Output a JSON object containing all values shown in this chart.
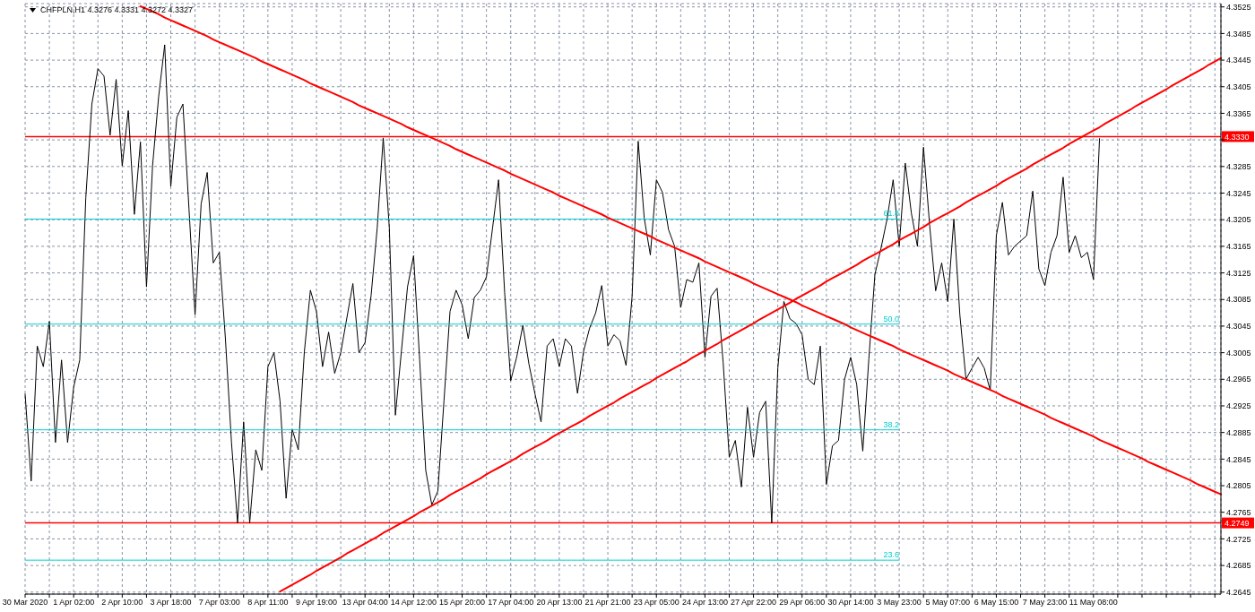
{
  "chart_data": {
    "type": "line",
    "title": "CHFPLN,H1 4.3276 4.3331 4.3272 4.3327",
    "categories": [
      "30 Mar 2020",
      null,
      null,
      null,
      null,
      null,
      null,
      null,
      "1 Apr 02:00",
      null,
      null,
      null,
      null,
      null,
      null,
      null,
      "2 Apr 10:00",
      null,
      null,
      null,
      null,
      null,
      null,
      null,
      "3 Apr 18:00",
      null,
      null,
      null,
      null,
      null,
      null,
      null,
      "7 Apr 03:00",
      null,
      null,
      null,
      null,
      null,
      null,
      null,
      "8 Apr 11:00",
      null,
      null,
      null,
      null,
      null,
      null,
      null,
      "9 Apr 19:00",
      null,
      null,
      null,
      null,
      null,
      null,
      null,
      "13 Apr 04:00",
      null,
      null,
      null,
      null,
      null,
      null,
      null,
      "14 Apr 12:00",
      null,
      null,
      null,
      null,
      null,
      null,
      null,
      "15 Apr 20:00",
      null,
      null,
      null,
      null,
      null,
      null,
      null,
      "17 Apr 04:00",
      null,
      null,
      null,
      null,
      null,
      null,
      null,
      "20 Apr 13:00",
      null,
      null,
      null,
      null,
      null,
      null,
      null,
      "21 Apr 21:00",
      null,
      null,
      null,
      null,
      null,
      null,
      null,
      "23 Apr 05:00",
      null,
      null,
      null,
      null,
      null,
      null,
      null,
      "24 Apr 13:00",
      null,
      null,
      null,
      null,
      null,
      null,
      null,
      "27 Apr 22:00",
      null,
      null,
      null,
      null,
      null,
      null,
      null,
      "29 Apr 06:00",
      null,
      null,
      null,
      null,
      null,
      null,
      null,
      "30 Apr 14:00",
      null,
      null,
      null,
      null,
      null,
      null,
      null,
      "3 May 23:00",
      null,
      null,
      null,
      null,
      null,
      null,
      null,
      "5 May 07:00",
      null,
      null,
      null,
      null,
      null,
      null,
      null,
      "6 May 15:00",
      null,
      null,
      null,
      null,
      null,
      null,
      null,
      "7 May 23:00",
      null,
      null,
      null,
      null,
      null,
      null,
      null,
      "11 May 08:00",
      null,
      null,
      null,
      null,
      null,
      null,
      null,
      null,
      null,
      null,
      null,
      null,
      null,
      null,
      null,
      null,
      null,
      null,
      null,
      null,
      null
    ],
    "ylim": [
      4.2642,
      4.353
    ],
    "yticks": [
      4.2645,
      4.2685,
      4.2725,
      4.2765,
      4.2805,
      4.2845,
      4.2885,
      4.2925,
      4.2965,
      4.3005,
      4.3045,
      4.3085,
      4.3125,
      4.3165,
      4.3205,
      4.3245,
      4.3285,
      {
        "value": 4.3325,
        "label": null
      },
      4.3365,
      4.3405,
      4.3445,
      4.3485,
      4.3525
    ],
    "grid": true,
    "marker": "none",
    "ref_lines": [
      {
        "axis": "y",
        "value": 4.333,
        "label": "4.3330",
        "color": "#ff0000"
      },
      {
        "axis": "y",
        "value": 4.2749,
        "label": "4.2749",
        "color": "#ff0000"
      }
    ],
    "series": [
      {
        "color": "#000000",
        "values": [
          4.2943,
          4.2812,
          4.3015,
          4.2984,
          4.3052,
          4.287,
          4.2994,
          4.287,
          4.2953,
          4.2994,
          4.3238,
          4.3379,
          4.3432,
          4.3421,
          4.3332,
          4.3416,
          4.3286,
          4.3369,
          4.3213,
          4.3322,
          4.3104,
          4.3286,
          4.339,
          4.3468,
          4.3255,
          4.3359,
          4.3379,
          4.3221,
          4.3062,
          4.3229,
          4.3276,
          4.314,
          4.3156,
          4.3026,
          4.287,
          4.2749,
          4.2901,
          4.2749,
          4.2859,
          4.2828,
          4.2984,
          4.3005,
          4.2932,
          4.2786,
          4.289,
          4.2859,
          4.3006,
          4.3099,
          4.3067,
          4.2984,
          4.3036,
          4.2974,
          4.3005,
          4.3057,
          4.3109,
          4.3005,
          4.302,
          4.3091,
          4.3192,
          4.3328,
          4.3193,
          4.2911,
          4.3008,
          4.3104,
          4.3151,
          4.2994,
          4.2828,
          4.2776,
          4.2797,
          4.2932,
          4.3067,
          4.3099,
          4.3077,
          4.3026,
          4.3088,
          4.3099,
          4.3119,
          4.3192,
          4.3265,
          4.3095,
          4.2963,
          4.2999,
          4.3046,
          4.2988,
          4.2943,
          4.2901,
          4.3015,
          4.3026,
          4.2984,
          4.3026,
          4.3015,
          4.2944,
          4.3007,
          4.3042,
          4.3065,
          4.3106,
          4.3015,
          4.3032,
          4.3023,
          4.2986,
          4.309,
          4.3323,
          4.3207,
          4.3152,
          4.3265,
          4.3246,
          4.319,
          4.3165,
          4.3073,
          4.3115,
          4.3111,
          4.314,
          4.2998,
          4.309,
          4.3102,
          4.299,
          4.2848,
          4.2873,
          4.2803,
          4.2923,
          4.2848,
          4.2915,
          4.2932,
          4.2749,
          4.2982,
          4.3082,
          4.3056,
          4.3049,
          4.3032,
          4.2965,
          4.2957,
          4.3015,
          4.2807,
          4.2865,
          4.2873,
          4.2965,
          4.2998,
          4.2957,
          4.2857,
          4.2996,
          4.3123,
          4.3162,
          4.3206,
          4.3265,
          4.3165,
          4.329,
          4.3215,
          4.3165,
          4.3314,
          4.3198,
          4.3098,
          4.314,
          4.3082,
          4.3206,
          4.3061,
          4.2965,
          4.2982,
          4.2998,
          4.2982,
          4.2948,
          4.3181,
          4.3231,
          4.3152,
          4.3165,
          4.3173,
          4.3181,
          4.3248,
          4.3131,
          4.3106,
          4.3156,
          4.3181,
          4.3269,
          4.3156,
          4.3181,
          4.3148,
          4.3156,
          4.3115,
          4.3327,
          null,
          null,
          null,
          null,
          null,
          null,
          null,
          null,
          null,
          null,
          null,
          null,
          null,
          null,
          null,
          null,
          null,
          null,
          null,
          null
        ]
      },
      {
        "type": "line",
        "name": "61.8",
        "color": "#00ced1",
        "values": [
          4.3206,
          4.3206,
          4.3206,
          4.3206,
          4.3206,
          4.3206,
          4.3206,
          4.3206,
          4.3206,
          4.3206,
          4.3206,
          4.3206,
          4.3206,
          4.3206,
          4.3206,
          4.3206,
          4.3206,
          4.3206,
          4.3206,
          4.3206,
          4.3206,
          4.3206,
          4.3206,
          4.3206,
          4.3206,
          4.3206,
          4.3206,
          4.3206,
          4.3206,
          4.3206,
          4.3206,
          4.3206,
          4.3206,
          4.3206,
          4.3206,
          4.3206,
          4.3206,
          4.3206,
          4.3206,
          4.3206,
          4.3206,
          4.3206,
          4.3206,
          4.3206,
          4.3206,
          4.3206,
          4.3206,
          4.3206,
          4.3206,
          4.3206,
          4.3206,
          4.3206,
          4.3206,
          4.3206,
          4.3206,
          4.3206,
          4.3206,
          4.3206,
          4.3206,
          4.3206,
          4.3206,
          4.3206,
          4.3206,
          4.3206,
          4.3206,
          4.3206,
          4.3206,
          4.3206,
          4.3206,
          4.3206,
          4.3206,
          4.3206,
          4.3206,
          4.3206,
          4.3206,
          4.3206,
          4.3206,
          4.3206,
          4.3206,
          4.3206,
          4.3206,
          4.3206,
          4.3206,
          4.3206,
          4.3206,
          4.3206,
          4.3206,
          4.3206,
          4.3206,
          4.3206,
          4.3206,
          4.3206,
          4.3206,
          4.3206,
          4.3206,
          4.3206,
          4.3206,
          4.3206,
          4.3206,
          4.3206,
          4.3206,
          4.3206,
          4.3206,
          4.3206,
          4.3206,
          4.3206,
          4.3206,
          4.3206,
          4.3206,
          4.3206,
          4.3206,
          4.3206,
          4.3206,
          4.3206,
          4.3206,
          4.3206,
          4.3206,
          4.3206,
          4.3206,
          4.3206,
          4.3206,
          4.3206,
          4.3206,
          4.3206,
          4.3206,
          4.3206,
          4.3206,
          4.3206,
          4.3206,
          4.3206,
          4.3206,
          4.3206,
          4.3206,
          4.3206,
          4.3206,
          4.3206,
          4.3206,
          4.3206,
          4.3206,
          4.3206,
          4.3206,
          4.3206,
          4.3206,
          4.3206,
          4.3206,
          null,
          null,
          null,
          null,
          null,
          null,
          null,
          null,
          null,
          null,
          null,
          null,
          null,
          null,
          null,
          null,
          null,
          null,
          null,
          null,
          null,
          null,
          null,
          null,
          null,
          null,
          null,
          null,
          null,
          null,
          null,
          null,
          null,
          null,
          null,
          null,
          null,
          null,
          null,
          null,
          null,
          null,
          null,
          null,
          null,
          null,
          null,
          null,
          null,
          null,
          null,
          null,
          null
        ]
      },
      {
        "type": "line",
        "name": "50.0",
        "color": "#00ced1",
        "values": [
          4.3048,
          4.3048,
          4.3048,
          4.3048,
          4.3048,
          4.3048,
          4.3048,
          4.3048,
          4.3048,
          4.3048,
          4.3048,
          4.3048,
          4.3048,
          4.3048,
          4.3048,
          4.3048,
          4.3048,
          4.3048,
          4.3048,
          4.3048,
          4.3048,
          4.3048,
          4.3048,
          4.3048,
          4.3048,
          4.3048,
          4.3048,
          4.3048,
          4.3048,
          4.3048,
          4.3048,
          4.3048,
          4.3048,
          4.3048,
          4.3048,
          4.3048,
          4.3048,
          4.3048,
          4.3048,
          4.3048,
          4.3048,
          4.3048,
          4.3048,
          4.3048,
          4.3048,
          4.3048,
          4.3048,
          4.3048,
          4.3048,
          4.3048,
          4.3048,
          4.3048,
          4.3048,
          4.3048,
          4.3048,
          4.3048,
          4.3048,
          4.3048,
          4.3048,
          4.3048,
          4.3048,
          4.3048,
          4.3048,
          4.3048,
          4.3048,
          4.3048,
          4.3048,
          4.3048,
          4.3048,
          4.3048,
          4.3048,
          4.3048,
          4.3048,
          4.3048,
          4.3048,
          4.3048,
          4.3048,
          4.3048,
          4.3048,
          4.3048,
          4.3048,
          4.3048,
          4.3048,
          4.3048,
          4.3048,
          4.3048,
          4.3048,
          4.3048,
          4.3048,
          4.3048,
          4.3048,
          4.3048,
          4.3048,
          4.3048,
          4.3048,
          4.3048,
          4.3048,
          4.3048,
          4.3048,
          4.3048,
          4.3048,
          4.3048,
          4.3048,
          4.3048,
          4.3048,
          4.3048,
          4.3048,
          4.3048,
          4.3048,
          4.3048,
          4.3048,
          4.3048,
          4.3048,
          4.3048,
          4.3048,
          4.3048,
          4.3048,
          4.3048,
          4.3048,
          4.3048,
          4.3048,
          4.3048,
          4.3048,
          4.3048,
          4.3048,
          4.3048,
          4.3048,
          4.3048,
          4.3048,
          4.3048,
          4.3048,
          4.3048,
          4.3048,
          4.3048,
          4.3048,
          4.3048,
          4.3048,
          4.3048,
          4.3048,
          4.3048,
          4.3048,
          4.3048,
          4.3048,
          4.3048,
          4.3048,
          null,
          null,
          null,
          null,
          null,
          null,
          null,
          null,
          null,
          null,
          null,
          null,
          null,
          null,
          null,
          null,
          null,
          null,
          null,
          null,
          null,
          null,
          null,
          null,
          null,
          null,
          null,
          null,
          null,
          null,
          null,
          null,
          null,
          null,
          null,
          null,
          null,
          null,
          null,
          null,
          null,
          null,
          null,
          null,
          null,
          null,
          null,
          null,
          null,
          null,
          null,
          null,
          null
        ]
      },
      {
        "type": "line",
        "name": "38.2",
        "color": "#00ced1",
        "values": [
          4.2889,
          4.2889,
          4.2889,
          4.2889,
          4.2889,
          4.2889,
          4.2889,
          4.2889,
          4.2889,
          4.2889,
          4.2889,
          4.2889,
          4.2889,
          4.2889,
          4.2889,
          4.2889,
          4.2889,
          4.2889,
          4.2889,
          4.2889,
          4.2889,
          4.2889,
          4.2889,
          4.2889,
          4.2889,
          4.2889,
          4.2889,
          4.2889,
          4.2889,
          4.2889,
          4.2889,
          4.2889,
          4.2889,
          4.2889,
          4.2889,
          4.2889,
          4.2889,
          4.2889,
          4.2889,
          4.2889,
          4.2889,
          4.2889,
          4.2889,
          4.2889,
          4.2889,
          4.2889,
          4.2889,
          4.2889,
          4.2889,
          4.2889,
          4.2889,
          4.2889,
          4.2889,
          4.2889,
          4.2889,
          4.2889,
          4.2889,
          4.2889,
          4.2889,
          4.2889,
          4.2889,
          4.2889,
          4.2889,
          4.2889,
          4.2889,
          4.2889,
          4.2889,
          4.2889,
          4.2889,
          4.2889,
          4.2889,
          4.2889,
          4.2889,
          4.2889,
          4.2889,
          4.2889,
          4.2889,
          4.2889,
          4.2889,
          4.2889,
          4.2889,
          4.2889,
          4.2889,
          4.2889,
          4.2889,
          4.2889,
          4.2889,
          4.2889,
          4.2889,
          4.2889,
          4.2889,
          4.2889,
          4.2889,
          4.2889,
          4.2889,
          4.2889,
          4.2889,
          4.2889,
          4.2889,
          4.2889,
          4.2889,
          4.2889,
          4.2889,
          4.2889,
          4.2889,
          4.2889,
          4.2889,
          4.2889,
          4.2889,
          4.2889,
          4.2889,
          4.2889,
          4.2889,
          4.2889,
          4.2889,
          4.2889,
          4.2889,
          4.2889,
          4.2889,
          4.2889,
          4.2889,
          4.2889,
          4.2889,
          4.2889,
          4.2889,
          4.2889,
          4.2889,
          4.2889,
          4.2889,
          4.2889,
          4.2889,
          4.2889,
          4.2889,
          4.2889,
          4.2889,
          4.2889,
          4.2889,
          4.2889,
          4.2889,
          4.2889,
          4.2889,
          4.2889,
          4.2889,
          4.2889,
          4.2889,
          null,
          null,
          null,
          null,
          null,
          null,
          null,
          null,
          null,
          null,
          null,
          null,
          null,
          null,
          null,
          null,
          null,
          null,
          null,
          null,
          null,
          null,
          null,
          null,
          null,
          null,
          null,
          null,
          null,
          null,
          null,
          null,
          null,
          null,
          null,
          null,
          null,
          null,
          null,
          null,
          null,
          null,
          null,
          null,
          null,
          null,
          null,
          null,
          null,
          null,
          null,
          null,
          null
        ]
      },
      {
        "type": "line",
        "name": "23.6",
        "color": "#00ced1",
        "values": [
          4.2693,
          4.2693,
          4.2693,
          4.2693,
          4.2693,
          4.2693,
          4.2693,
          4.2693,
          4.2693,
          4.2693,
          4.2693,
          4.2693,
          4.2693,
          4.2693,
          4.2693,
          4.2693,
          4.2693,
          4.2693,
          4.2693,
          4.2693,
          4.2693,
          4.2693,
          4.2693,
          4.2693,
          4.2693,
          4.2693,
          4.2693,
          4.2693,
          4.2693,
          4.2693,
          4.2693,
          4.2693,
          4.2693,
          4.2693,
          4.2693,
          4.2693,
          4.2693,
          4.2693,
          4.2693,
          4.2693,
          4.2693,
          4.2693,
          4.2693,
          4.2693,
          4.2693,
          4.2693,
          4.2693,
          4.2693,
          4.2693,
          4.2693,
          4.2693,
          4.2693,
          4.2693,
          4.2693,
          4.2693,
          4.2693,
          4.2693,
          4.2693,
          4.2693,
          4.2693,
          4.2693,
          4.2693,
          4.2693,
          4.2693,
          4.2693,
          4.2693,
          4.2693,
          4.2693,
          4.2693,
          4.2693,
          4.2693,
          4.2693,
          4.2693,
          4.2693,
          4.2693,
          4.2693,
          4.2693,
          4.2693,
          4.2693,
          4.2693,
          4.2693,
          4.2693,
          4.2693,
          4.2693,
          4.2693,
          4.2693,
          4.2693,
          4.2693,
          4.2693,
          4.2693,
          4.2693,
          4.2693,
          4.2693,
          4.2693,
          4.2693,
          4.2693,
          4.2693,
          4.2693,
          4.2693,
          4.2693,
          4.2693,
          4.2693,
          4.2693,
          4.2693,
          4.2693,
          4.2693,
          4.2693,
          4.2693,
          4.2693,
          4.2693,
          4.2693,
          4.2693,
          4.2693,
          4.2693,
          4.2693,
          4.2693,
          4.2693,
          4.2693,
          4.2693,
          4.2693,
          4.2693,
          4.2693,
          4.2693,
          4.2693,
          4.2693,
          4.2693,
          4.2693,
          4.2693,
          4.2693,
          4.2693,
          4.2693,
          4.2693,
          4.2693,
          4.2693,
          4.2693,
          4.2693,
          4.2693,
          4.2693,
          4.2693,
          4.2693,
          4.2693,
          4.2693,
          4.2693,
          4.2693,
          4.2693,
          null,
          null,
          null,
          null,
          null,
          null,
          null,
          null,
          null,
          null,
          null,
          null,
          null,
          null,
          null,
          null,
          null,
          null,
          null,
          null,
          null,
          null,
          null,
          null,
          null,
          null,
          null,
          null,
          null,
          null,
          null,
          null,
          null,
          null,
          null,
          null,
          null,
          null,
          null,
          null,
          null,
          null,
          null,
          null,
          null,
          null,
          null,
          null,
          null,
          null,
          null,
          null,
          null
        ]
      },
      {
        "type": "line",
        "color": "#ff0000",
        "values": [
          null,
          null,
          null,
          null,
          null,
          null,
          null,
          null,
          null,
          null,
          null,
          null,
          null,
          null,
          null,
          null,
          null,
          null,
          null,
          4.3526,
          4.3522,
          4.3518,
          4.3514,
          4.3509,
          4.3505,
          4.3501,
          4.3497,
          4.3493,
          4.3489,
          4.3485,
          4.3481,
          4.3476,
          4.3472,
          4.3468,
          4.3464,
          4.346,
          4.3456,
          4.3452,
          4.3448,
          4.3443,
          4.3439,
          4.3435,
          4.3431,
          4.3427,
          4.3423,
          4.3419,
          4.3415,
          4.341,
          4.3406,
          4.3402,
          4.3398,
          4.3394,
          4.339,
          4.3386,
          4.3382,
          4.3377,
          4.3373,
          4.3369,
          4.3365,
          4.3361,
          4.3357,
          4.3353,
          4.3349,
          4.3344,
          4.334,
          4.3336,
          4.3332,
          4.3328,
          4.3324,
          4.332,
          4.3316,
          4.3311,
          4.3307,
          4.3303,
          4.3299,
          4.3295,
          4.3291,
          4.3287,
          4.3283,
          4.3279,
          4.3274,
          4.327,
          4.3266,
          4.3262,
          4.3258,
          4.3254,
          4.325,
          4.3246,
          4.3241,
          4.3237,
          4.3233,
          4.3229,
          4.3225,
          4.3221,
          4.3217,
          4.3213,
          4.3208,
          4.3204,
          4.32,
          4.3196,
          4.3192,
          4.3188,
          4.3184,
          4.318,
          4.3175,
          4.3171,
          4.3167,
          4.3163,
          4.3159,
          4.3155,
          4.3151,
          4.3147,
          4.3142,
          4.3138,
          4.3134,
          4.313,
          4.3126,
          4.3122,
          4.3118,
          4.3114,
          4.3109,
          4.3105,
          4.3101,
          4.3097,
          4.3093,
          4.3089,
          4.3085,
          4.3081,
          4.3076,
          4.3072,
          4.3068,
          4.3064,
          4.306,
          4.3056,
          4.3052,
          4.3048,
          4.3043,
          4.3039,
          4.3035,
          4.3031,
          4.3027,
          4.3023,
          4.3019,
          4.3015,
          4.301,
          4.3006,
          4.3002,
          4.2998,
          4.2994,
          4.299,
          4.2986,
          4.2982,
          4.2978,
          4.2973,
          4.2969,
          4.2965,
          4.2961,
          4.2957,
          4.2953,
          4.2949,
          4.2945,
          4.294,
          4.2936,
          4.2932,
          4.2928,
          4.2924,
          4.292,
          4.2916,
          4.2912,
          4.2907,
          4.2903,
          4.2899,
          4.2895,
          4.2891,
          4.2887,
          4.2883,
          4.2879,
          4.2874,
          4.287,
          4.2866,
          4.2862,
          4.2858,
          4.2854,
          4.285,
          4.2846,
          4.2841,
          4.2837,
          4.2833,
          4.2829,
          4.2825,
          4.2821,
          4.2817,
          4.2813,
          4.2808,
          4.2804,
          4.28,
          4.2796,
          4.2792
        ]
      },
      {
        "type": "line",
        "color": "#ff0000",
        "values": [
          null,
          null,
          null,
          null,
          null,
          null,
          null,
          null,
          null,
          null,
          null,
          null,
          null,
          null,
          null,
          null,
          null,
          null,
          null,
          null,
          null,
          null,
          null,
          null,
          null,
          null,
          null,
          null,
          null,
          null,
          null,
          null,
          null,
          null,
          null,
          null,
          null,
          null,
          null,
          null,
          null,
          null,
          4.2646,
          4.2651,
          4.2656,
          4.2661,
          4.2666,
          4.2671,
          4.2677,
          4.2682,
          4.2687,
          4.2692,
          4.2697,
          4.2703,
          4.2708,
          4.2713,
          4.2718,
          4.2723,
          4.2728,
          4.2734,
          4.2739,
          4.2744,
          4.2749,
          4.2754,
          4.2759,
          4.2765,
          4.277,
          4.2775,
          4.278,
          4.2785,
          4.2791,
          4.2796,
          4.2801,
          4.2806,
          4.2811,
          4.2816,
          4.2822,
          4.2827,
          4.2832,
          4.2837,
          4.2842,
          4.2847,
          4.2853,
          4.2858,
          4.2863,
          4.2868,
          4.2873,
          4.2879,
          4.2884,
          4.2889,
          4.2894,
          4.2899,
          4.2904,
          4.291,
          4.2915,
          4.292,
          4.2925,
          4.293,
          4.2936,
          4.2941,
          4.2946,
          4.2951,
          4.2956,
          4.2961,
          4.2967,
          4.2972,
          4.2977,
          4.2982,
          4.2987,
          4.2992,
          4.2998,
          4.3003,
          4.3008,
          4.3013,
          4.3018,
          4.3024,
          4.3029,
          4.3034,
          4.3039,
          4.3044,
          4.3049,
          4.3055,
          4.306,
          4.3065,
          4.307,
          4.3075,
          4.308,
          4.3086,
          4.3091,
          4.3096,
          4.3101,
          4.3106,
          4.3112,
          4.3117,
          4.3122,
          4.3127,
          4.3132,
          4.3137,
          4.3143,
          4.3148,
          4.3153,
          4.3158,
          4.3163,
          4.3168,
          4.3174,
          4.3179,
          4.3184,
          4.3189,
          4.3194,
          4.32,
          4.3205,
          4.321,
          4.3215,
          4.322,
          4.3225,
          4.3231,
          4.3236,
          4.3241,
          4.3246,
          4.3251,
          4.3256,
          4.3262,
          4.3267,
          4.3272,
          4.3277,
          4.3282,
          4.3288,
          4.3293,
          4.3298,
          4.3303,
          4.3308,
          4.3313,
          4.3319,
          4.3324,
          4.3329,
          4.3334,
          4.3339,
          4.3344,
          4.335,
          4.3355,
          4.336,
          4.3365,
          4.337,
          4.3376,
          4.3381,
          4.3386,
          4.3391,
          4.3396,
          4.3401,
          4.3407,
          4.3412,
          4.3417,
          4.3422,
          4.3427,
          4.3432,
          4.3438,
          4.3443,
          4.3448
        ]
      }
    ]
  }
}
